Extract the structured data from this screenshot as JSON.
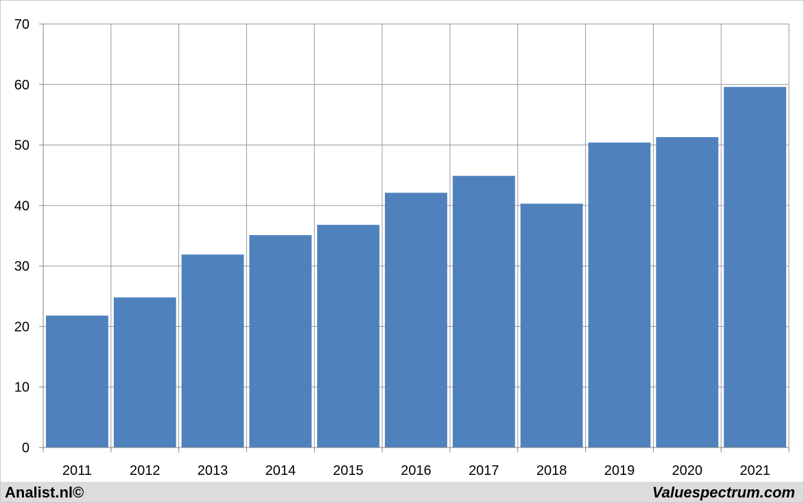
{
  "chart_data": {
    "type": "bar",
    "title": "",
    "xlabel": "",
    "ylabel": "",
    "categories": [
      "2011",
      "2012",
      "2013",
      "2014",
      "2015",
      "2016",
      "2017",
      "2018",
      "2019",
      "2020",
      "2021"
    ],
    "values": [
      21.8,
      24.8,
      31.9,
      35.1,
      36.8,
      42.1,
      44.9,
      40.3,
      50.4,
      51.3,
      59.6
    ],
    "ylim": [
      0,
      70
    ],
    "yticks": [
      "0",
      "10",
      "20",
      "30",
      "40",
      "50",
      "60",
      "70"
    ],
    "grid": true,
    "legend": "none",
    "bar_color": "#4f81bd",
    "grid_color": "#969696"
  },
  "footer": {
    "left": "Analist.nl©",
    "right": "Valuespectrum.com"
  }
}
